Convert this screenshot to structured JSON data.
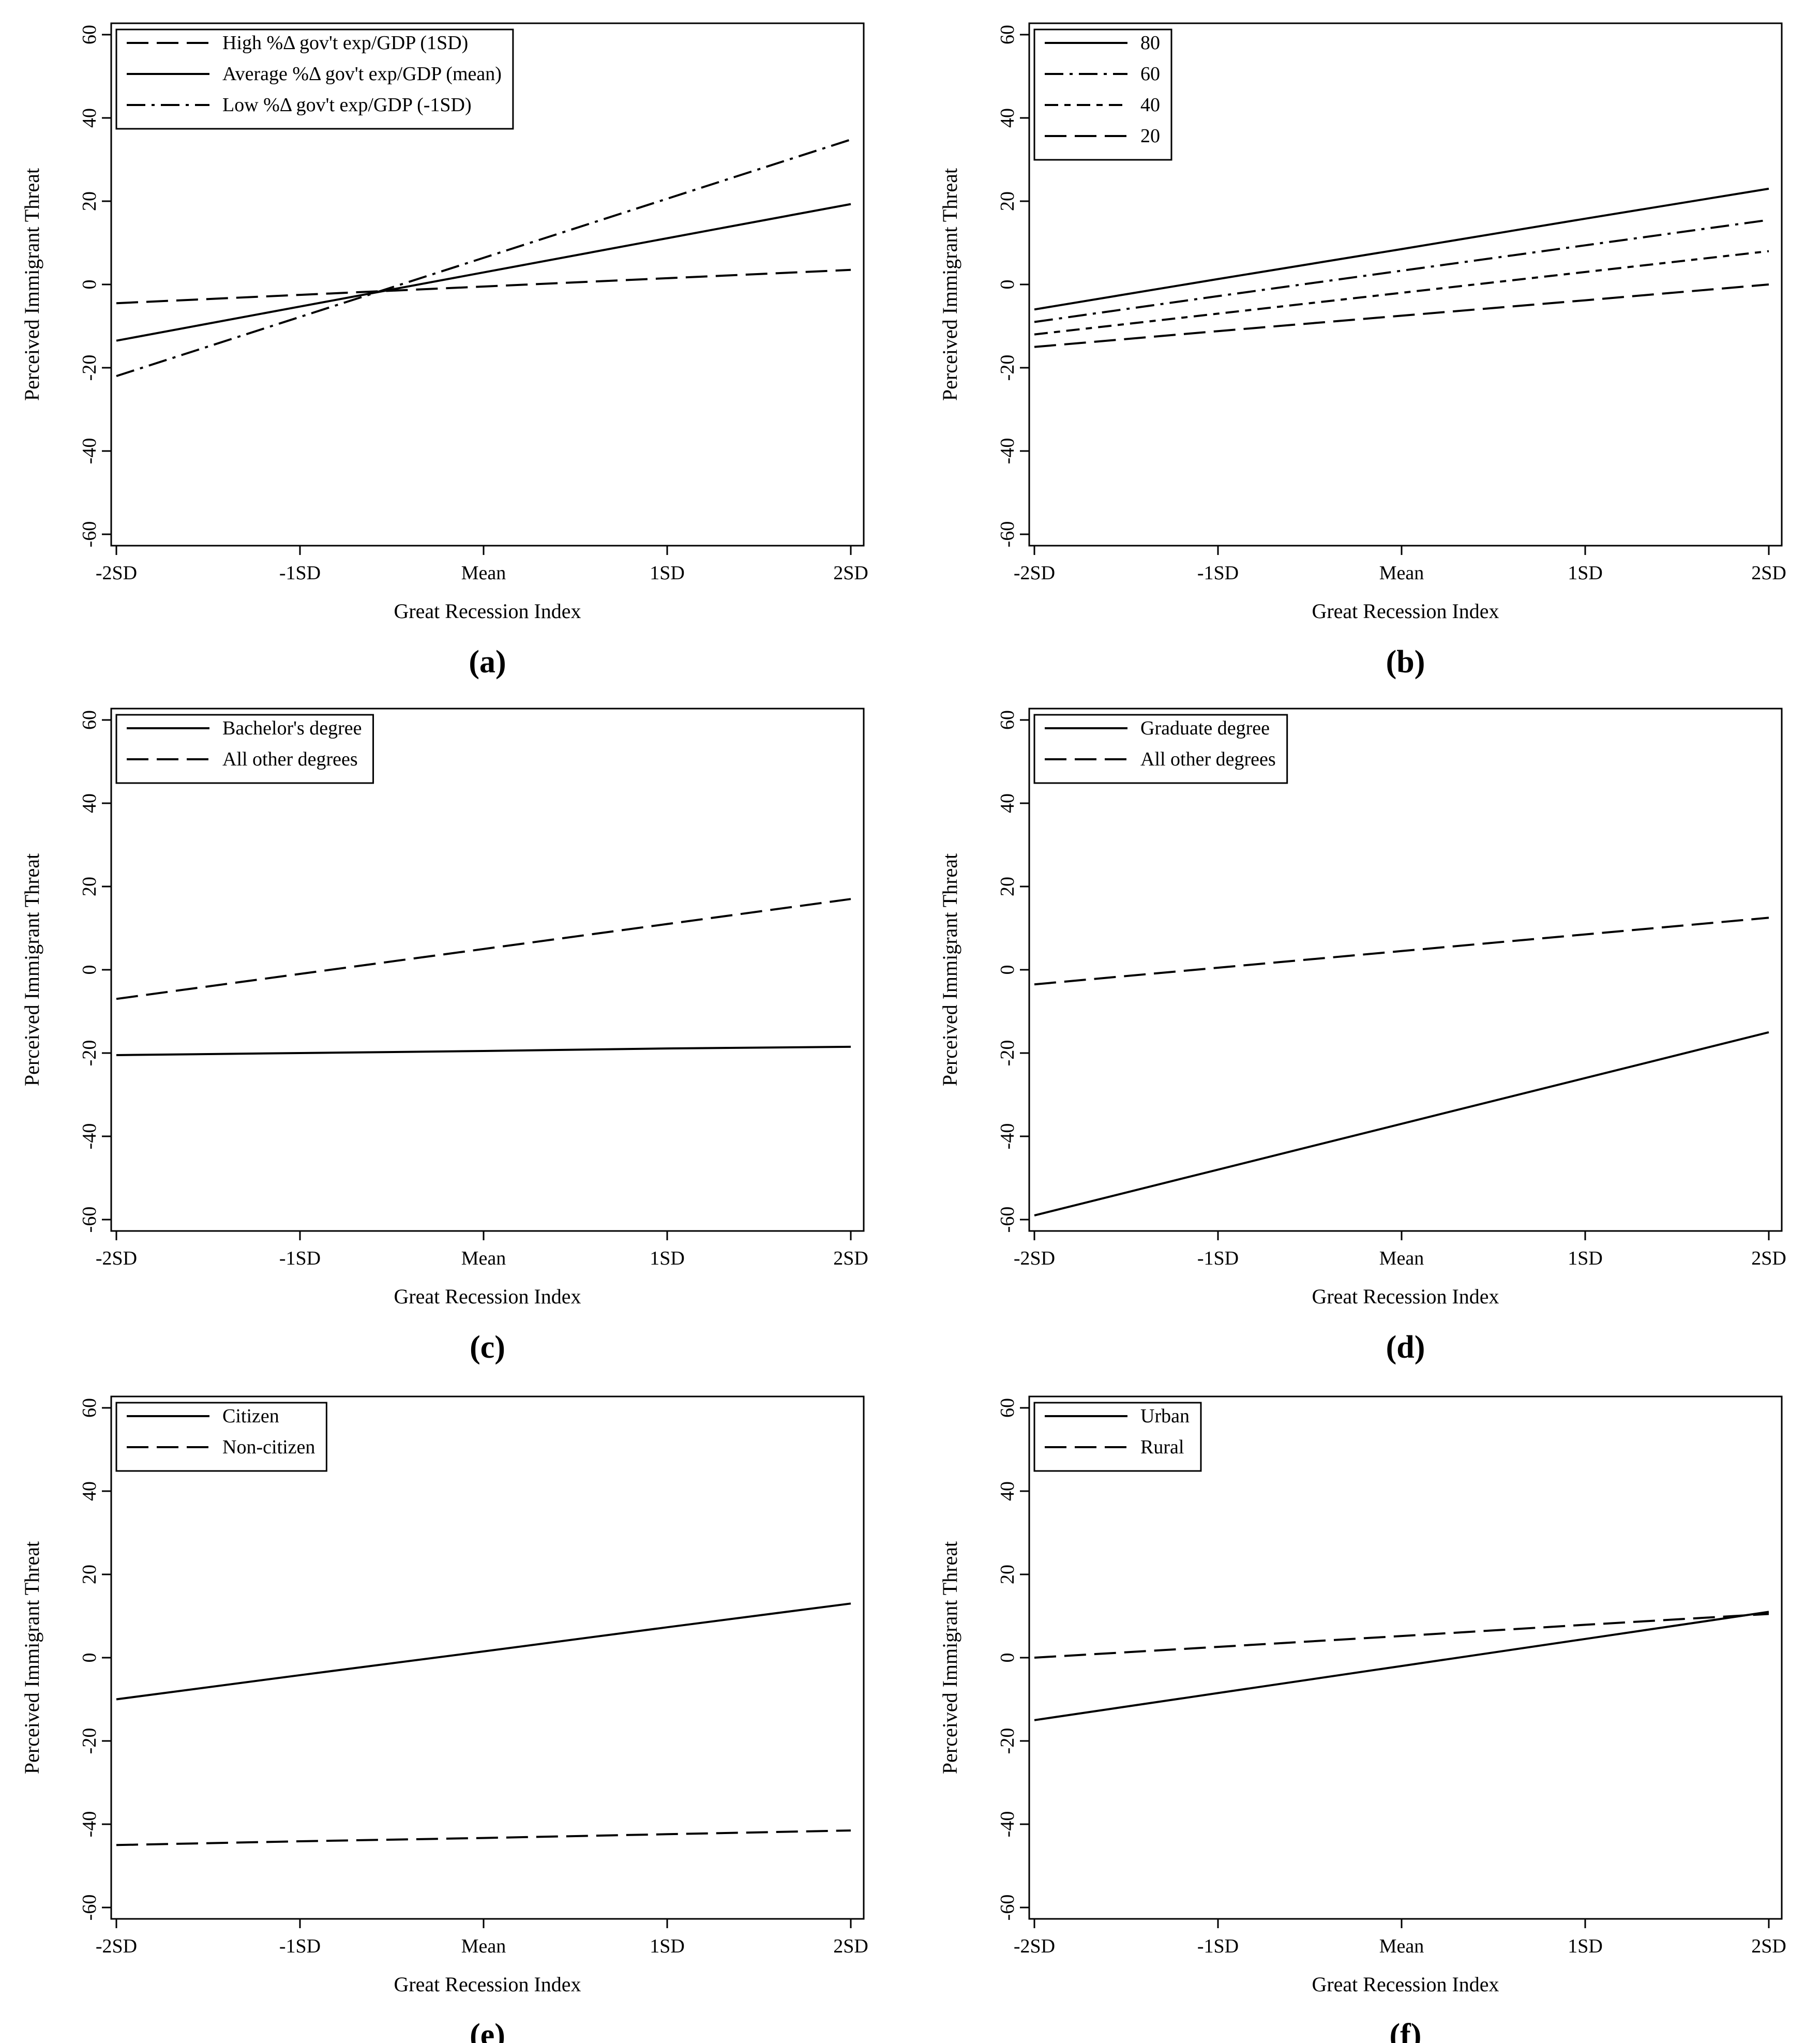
{
  "figure": {
    "chart_data": [
      {
        "type": "line",
        "panel": "(a)",
        "xlabel": "Great Recession Index",
        "ylabel": "Perceived Immigrant Threat",
        "categories": [
          "-2SD",
          "-1SD",
          "Mean",
          "1SD",
          "2SD"
        ],
        "yticks": [
          "60",
          "40",
          "20",
          "0",
          "-20",
          "-40",
          "-60"
        ],
        "ylim": [
          -60,
          60
        ],
        "legend_position": "top-left",
        "series": [
          {
            "name": "High %Δ gov't exp/GDP (1SD)",
            "dash": "longdash",
            "values": [
              -4.5,
              -2.5,
              -0.5,
              1.5,
              3.5
            ]
          },
          {
            "name": "Average %Δ gov't exp/GDP (mean)",
            "dash": "solid",
            "values": [
              -13.5,
              -5.3,
              2.9,
              11.1,
              19.3
            ]
          },
          {
            "name": "Low %Δ gov't exp/GDP (-1SD)",
            "dash": "dashdot",
            "values": [
              -22,
              -7.8,
              6.4,
              20.6,
              34.8
            ]
          }
        ]
      },
      {
        "type": "line",
        "panel": "(b)",
        "xlabel": "Great Recession Index",
        "ylabel": "Perceived Immigrant Threat",
        "categories": [
          "-2SD",
          "-1SD",
          "Mean",
          "1SD",
          "2SD"
        ],
        "yticks": [
          "60",
          "40",
          "20",
          "0",
          "-20",
          "-40",
          "-60"
        ],
        "ylim": [
          -60,
          60
        ],
        "legend_position": "top-left",
        "series": [
          {
            "name": "80",
            "dash": "solid",
            "values": [
              -6,
              1.3,
              8.5,
              15.8,
              23
            ]
          },
          {
            "name": "60",
            "dash": "dashdot",
            "values": [
              -9,
              -2.8,
              3.3,
              9.4,
              15.5
            ]
          },
          {
            "name": "40",
            "dash": "dashdotlong",
            "values": [
              -12,
              -7,
              -2,
              3,
              8
            ]
          },
          {
            "name": "20",
            "dash": "longdash",
            "values": [
              -15,
              -11.2,
              -7.5,
              -3.8,
              0
            ]
          }
        ]
      },
      {
        "type": "line",
        "panel": "(c)",
        "xlabel": "Great Recession Index",
        "ylabel": "Perceived Immigrant Threat",
        "categories": [
          "-2SD",
          "-1SD",
          "Mean",
          "1SD",
          "2SD"
        ],
        "yticks": [
          "60",
          "40",
          "20",
          "0",
          "-20",
          "-40",
          "-60"
        ],
        "ylim": [
          -60,
          60
        ],
        "legend_position": "top-left",
        "series": [
          {
            "name": "Bachelor's degree",
            "dash": "solid",
            "values": [
              -20.5,
              -20,
              -19.5,
              -18.9,
              -18.5
            ]
          },
          {
            "name": "All other degrees",
            "dash": "longdash",
            "values": [
              -7,
              -1,
              5,
              11,
              17
            ]
          }
        ]
      },
      {
        "type": "line",
        "panel": "(d)",
        "xlabel": "Great Recession Index",
        "ylabel": "Perceived Immigrant Threat",
        "categories": [
          "-2SD",
          "-1SD",
          "Mean",
          "1SD",
          "2SD"
        ],
        "yticks": [
          "60",
          "40",
          "20",
          "0",
          "-20",
          "-40",
          "-60"
        ],
        "ylim": [
          -60,
          60
        ],
        "legend_position": "top-left",
        "series": [
          {
            "name": "Graduate degree",
            "dash": "solid",
            "values": [
              -59,
              -48,
              -37,
              -26,
              -15
            ]
          },
          {
            "name": "All other degrees",
            "dash": "longdash",
            "values": [
              -3.5,
              0.5,
              4.5,
              8.5,
              12.5
            ]
          }
        ]
      },
      {
        "type": "line",
        "panel": "(e)",
        "xlabel": "Great Recession Index",
        "ylabel": "Perceived Immigrant Threat",
        "categories": [
          "-2SD",
          "-1SD",
          "Mean",
          "1SD",
          "2SD"
        ],
        "yticks": [
          "60",
          "40",
          "20",
          "0",
          "-20",
          "-40",
          "-60"
        ],
        "ylim": [
          -60,
          60
        ],
        "legend_position": "top-left",
        "series": [
          {
            "name": "Citizen",
            "dash": "solid",
            "values": [
              -10,
              -4.2,
              1.5,
              7.3,
              13
            ]
          },
          {
            "name": "Non-citizen",
            "dash": "longdash",
            "values": [
              -45,
              -44.1,
              -43.3,
              -42.4,
              -41.5
            ]
          }
        ]
      },
      {
        "type": "line",
        "panel": "(f)",
        "xlabel": "Great Recession Index",
        "ylabel": "Perceived Immigrant Threat",
        "categories": [
          "-2SD",
          "-1SD",
          "Mean",
          "1SD",
          "2SD"
        ],
        "yticks": [
          "60",
          "40",
          "20",
          "0",
          "-20",
          "-40",
          "-60"
        ],
        "ylim": [
          -60,
          60
        ],
        "legend_position": "top-left",
        "series": [
          {
            "name": "Urban",
            "dash": "solid",
            "values": [
              -15,
              -8.5,
              -2,
              4.5,
              11
            ]
          },
          {
            "name": "Rural",
            "dash": "longdash",
            "values": [
              0,
              2.6,
              5.2,
              7.9,
              10.5
            ]
          }
        ]
      }
    ]
  }
}
